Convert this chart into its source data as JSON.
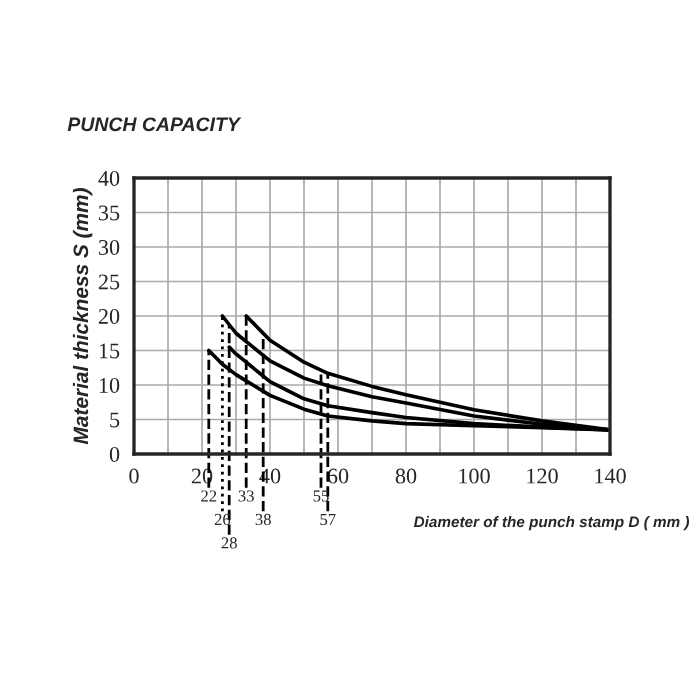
{
  "chart_data": {
    "type": "line",
    "title": "PUNCH CAPACITY",
    "xlabel": "Diameter of the punch stamp D ( mm )",
    "ylabel": "Material thickness S (mm)",
    "xlim": [
      0,
      140
    ],
    "ylim": [
      0,
      40
    ],
    "xticks": [
      0,
      {
        "value": 10,
        "label": null
      },
      20,
      {
        "value": 30,
        "label": null
      },
      40,
      {
        "value": 50,
        "label": null
      },
      60,
      {
        "value": 70,
        "label": null
      },
      80,
      {
        "value": 90,
        "label": null
      },
      100,
      {
        "value": 110,
        "label": null
      },
      120,
      {
        "value": 130,
        "label": null
      },
      140
    ],
    "yticks": [
      0,
      5,
      10,
      15,
      20,
      25,
      30,
      35,
      40
    ],
    "grid": true,
    "marker": "none",
    "line_style": "solid",
    "series": [
      {
        "color": "#000000",
        "x": [
          33,
          40,
          50,
          57,
          70,
          80,
          100,
          120,
          140
        ],
        "values": [
          20,
          16.5,
          13.3,
          11.7,
          9.8,
          8.6,
          6.4,
          4.8,
          3.5
        ]
      },
      {
        "color": "#000000",
        "x": [
          26,
          30,
          40,
          50,
          57,
          70,
          80,
          100,
          120,
          140
        ],
        "values": [
          20,
          17.5,
          13.5,
          11,
          9.9,
          8.3,
          7.4,
          5.5,
          4.3,
          3.5
        ]
      },
      {
        "color": "#000000",
        "x": [
          28,
          30,
          40,
          50,
          57,
          70,
          80,
          100,
          120,
          140
        ],
        "values": [
          15.5,
          14.5,
          10.5,
          8,
          7,
          6,
          5.3,
          4.4,
          3.9,
          3.5
        ]
      },
      {
        "color": "#000000",
        "x": [
          22,
          26,
          30,
          40,
          50,
          57,
          70,
          80,
          100,
          120,
          140
        ],
        "values": [
          15,
          13,
          11.5,
          8.5,
          6.5,
          5.5,
          4.8,
          4.4,
          4.1,
          3.8,
          3.5
        ]
      }
    ],
    "ref_lines": [
      {
        "axis": "x",
        "value": 22,
        "label": "22",
        "line_style": "dashed"
      },
      {
        "axis": "x",
        "value": 26,
        "label": "26",
        "line_style": "dotted"
      },
      {
        "axis": "x",
        "value": 28,
        "label": "28",
        "line_style": "dashed"
      },
      {
        "axis": "x",
        "value": 33,
        "label": "33",
        "line_style": "dashed"
      },
      {
        "axis": "x",
        "value": 38,
        "label": "38",
        "line_style": "dashed"
      },
      {
        "axis": "x",
        "value": 55,
        "label": "55",
        "line_style": "dashed"
      },
      {
        "axis": "x",
        "value": 57,
        "label": "57",
        "line_style": "dashed"
      }
    ]
  }
}
